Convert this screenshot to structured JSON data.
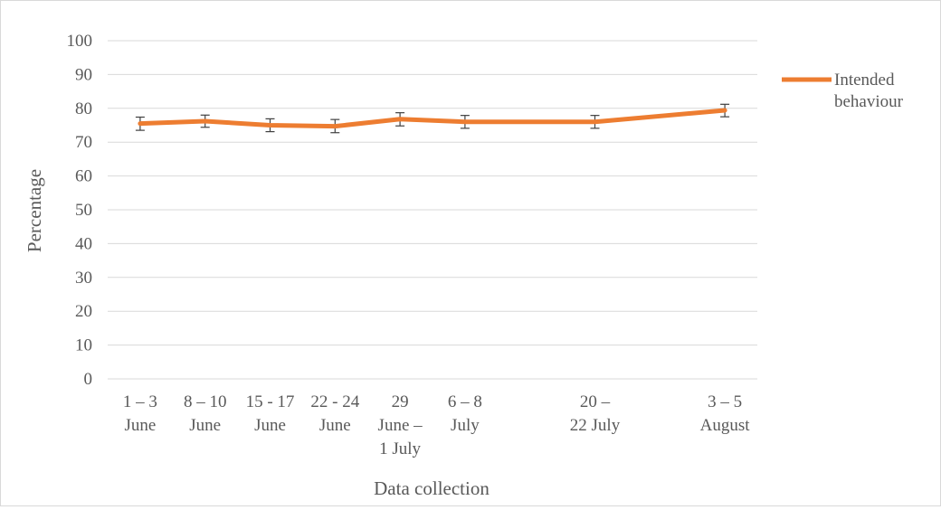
{
  "chart_data": {
    "type": "line",
    "xlabel": "Data collection",
    "ylabel": "Percentage",
    "ylim": [
      0,
      100
    ],
    "ytick_step": 10,
    "grid": true,
    "legend_position": "right",
    "categories": [
      [
        "1 – 3",
        "June"
      ],
      [
        "8 – 10",
        "June"
      ],
      [
        "15 - 17",
        "June"
      ],
      [
        "22 - 24",
        "June"
      ],
      [
        "29",
        "June –",
        "1 July"
      ],
      [
        "6 – 8",
        "July"
      ],
      [
        "20 –",
        "22 July"
      ],
      [
        "3 – 5",
        "August"
      ]
    ],
    "x": [
      1,
      2,
      3,
      4,
      5,
      6,
      8,
      10
    ],
    "series": [
      {
        "name": "Intended behaviour",
        "color": "#ed7d31",
        "values": [
          75.5,
          76.2,
          75.0,
          74.7,
          76.8,
          76.0,
          76.0,
          79.4
        ],
        "error_low": [
          73.5,
          74.4,
          73.1,
          72.8,
          74.8,
          74.1,
          74.1,
          77.5
        ],
        "error_high": [
          77.4,
          78.0,
          76.9,
          76.7,
          78.7,
          77.9,
          77.9,
          81.2
        ]
      }
    ]
  }
}
